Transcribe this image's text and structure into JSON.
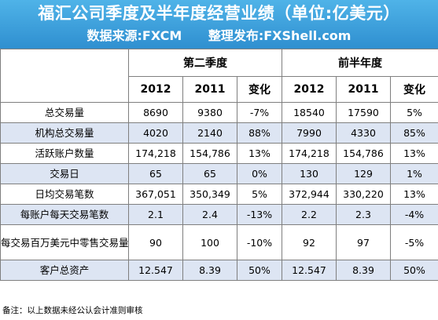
{
  "title": "福汇公司季度及半年度经营业绩（单位:亿美元）",
  "source_label": "数据来源:FXCM",
  "publisher_label": "整理发布:FXShell.com",
  "groups": [
    "第二季度",
    "前半年度"
  ],
  "columns": {
    "q_2012": "2012",
    "q_2011": "2011",
    "q_change": "变化",
    "h_2012": "2012",
    "h_2011": "2011",
    "h_change": "变化"
  },
  "rows": [
    {
      "label": "总交易量",
      "q2012": "8690",
      "q2011": "9380",
      "qchg": "-7%",
      "h2012": "18540",
      "h2011": "17590",
      "hchg": "5%"
    },
    {
      "label": "机构总交易量",
      "q2012": "4020",
      "q2011": "2140",
      "qchg": "88%",
      "h2012": "7990",
      "h2011": "4330",
      "hchg": "85%"
    },
    {
      "label": "活跃账户数量",
      "q2012": "174,218",
      "q2011": "154,786",
      "qchg": "13%",
      "h2012": "174,218",
      "h2011": "154,786",
      "hchg": "13%"
    },
    {
      "label": "交易日",
      "q2012": "65",
      "q2011": "65",
      "qchg": "0%",
      "h2012": "130",
      "h2011": "129",
      "hchg": "1%"
    },
    {
      "label": "日均交易笔数",
      "q2012": "367,051",
      "q2011": "350,349",
      "qchg": "5%",
      "h2012": "372,944",
      "h2011": "330,220",
      "hchg": "13%"
    },
    {
      "label": "每账户每天交易笔数",
      "q2012": "2.1",
      "q2011": "2.4",
      "qchg": "-13%",
      "h2012": "2.2",
      "h2011": "2.3",
      "hchg": "-4%"
    },
    {
      "label": "每交易百万美元中零售交易量（单位:美元)",
      "q2012": "90",
      "q2011": "100",
      "qchg": "-10%",
      "h2012": "92",
      "h2011": "97",
      "hchg": "-5%"
    },
    {
      "label": "客户总资产",
      "q2012": "12.547",
      "q2011": "8.39",
      "qchg": "50%",
      "h2012": "12.547",
      "h2011": "8.39",
      "hchg": "50%"
    }
  ],
  "footnote": "备注：以上数据未经公认会计准则审核",
  "colors": {
    "header_blue": "#3a9fdc",
    "row_alt": "#dde5f3",
    "border": "#7f7f7f"
  }
}
